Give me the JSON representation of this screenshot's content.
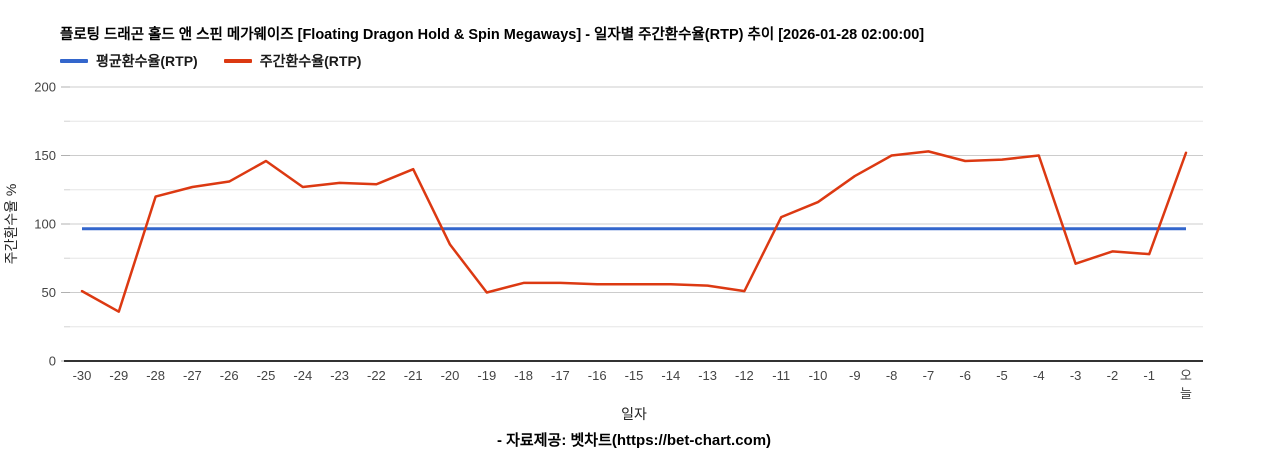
{
  "footer": {
    "text": "- 자료제공: 벳차트(https://bet-chart.com)"
  },
  "chart_data": {
    "type": "line",
    "title": "플로팅 드래곤 홀드 앤 스핀 메가웨이즈 [Floating Dragon Hold & Spin Megaways] - 일자별 주간환수율(RTP) 추이 [2026-01-28 02:00:00]",
    "xlabel": "일자",
    "ylabel": "주간환수율 %",
    "ylim": [
      0,
      200
    ],
    "y_major_ticks": [
      0,
      50,
      100,
      150,
      200
    ],
    "y_minor_ticks": [
      25,
      75,
      125,
      175
    ],
    "grid": true,
    "legend_position": "top-left",
    "categories": [
      "-30",
      "-29",
      "-28",
      "-27",
      "-26",
      "-25",
      "-24",
      "-23",
      "-22",
      "-21",
      "-20",
      "-19",
      "-18",
      "-17",
      "-16",
      "-15",
      "-14",
      "-13",
      "-12",
      "-11",
      "-10",
      "-9",
      "-8",
      "-7",
      "-6",
      "-5",
      "-4",
      "-3",
      "-2",
      "-1",
      "오늘"
    ],
    "series": [
      {
        "key": "avg-rtp",
        "name": "평균환수율(RTP)",
        "color": "#3366cc",
        "style": "constant",
        "value": 96.5
      },
      {
        "key": "weekly-rtp",
        "name": "주간환수율(RTP)",
        "color": "#dc3912",
        "style": "line",
        "values": [
          51,
          36,
          120,
          127,
          131,
          146,
          127,
          130,
          129,
          140,
          85,
          50,
          57,
          57,
          56,
          56,
          56,
          55,
          51,
          105,
          116,
          135,
          150,
          153,
          146,
          147,
          150,
          71,
          80,
          78,
          152
        ]
      }
    ],
    "colors": {
      "grid_major": "#cccccc",
      "grid_minor": "#e6e6e6",
      "baseline": "#333333",
      "tick_major": "#b0b0b0",
      "tick_minor": "#d9d9d9"
    }
  }
}
